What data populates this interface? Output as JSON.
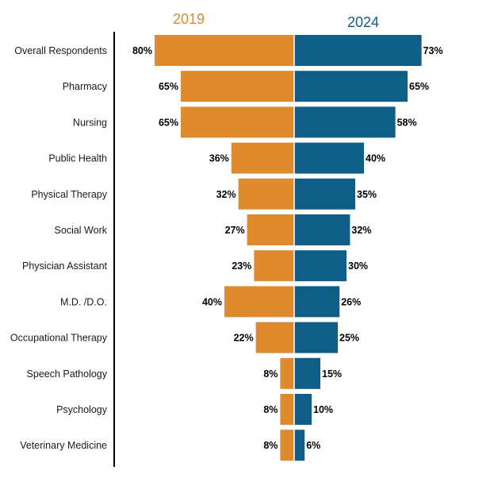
{
  "chart_data": {
    "type": "bar",
    "orientation": "horizontal-butterfly",
    "categories": [
      "Overall Respondents",
      "Pharmacy",
      "Nursing",
      "Public Health",
      "Physical Therapy",
      "Social Work",
      "Physician Assistant",
      "M.D. /D.O.",
      "Occupational Therapy",
      "Speech Pathology",
      "Psychology",
      "Veterinary Medicine"
    ],
    "series": [
      {
        "name": "2019",
        "values": [
          80,
          65,
          65,
          36,
          32,
          27,
          23,
          40,
          22,
          8,
          8,
          8
        ],
        "color": "#E08A2E",
        "side": "left"
      },
      {
        "name": "2024",
        "values": [
          73,
          65,
          58,
          40,
          35,
          32,
          30,
          26,
          25,
          15,
          10,
          6
        ],
        "color": "#0E5E86",
        "side": "right"
      }
    ],
    "value_suffix": "%",
    "xlim": [
      0,
      100
    ],
    "legend": "top, year labels above each side",
    "grid": false
  },
  "colors": {
    "series_2019": "#E08A2E",
    "series_2024": "#0E5E86",
    "axis": "#000000"
  }
}
